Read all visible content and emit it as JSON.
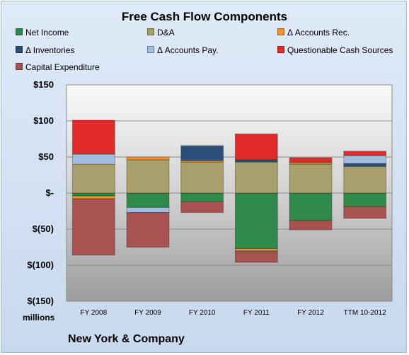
{
  "chart_data": {
    "type": "bar",
    "title": "Free Cash Flow Components",
    "categories": [
      "FY 2008",
      "FY 2009",
      "FY 2010",
      "FY 2011",
      "FY 2012",
      "TTM 10-2012"
    ],
    "y_tick_labels": [
      "$150",
      "$100",
      "$50",
      "$-",
      "$(50)",
      "$(100)",
      "$(150)"
    ],
    "y_tick_values": [
      150,
      100,
      50,
      0,
      -50,
      -100,
      -150
    ],
    "ylim": [
      -150,
      150
    ],
    "ylabel": "millions",
    "grid": true,
    "legend_position": "top",
    "stacked": true,
    "series": [
      {
        "name": "Net Income",
        "color": "#2f8a4b",
        "values": [
          -4,
          -20,
          -12,
          -77,
          -38,
          -18
        ]
      },
      {
        "name": "D&A",
        "color": "#a89f6a",
        "values": [
          40,
          46,
          43,
          43,
          40,
          37
        ]
      },
      {
        "name": "Δ Accounts Rec.",
        "color": "#f0912f",
        "values": [
          -4,
          4,
          2,
          -3,
          2,
          -1
        ]
      },
      {
        "name": "Δ Inventories",
        "color": "#2c4f7a",
        "values": [
          0,
          0,
          20,
          3,
          0,
          4
        ]
      },
      {
        "name": "Δ Accounts Pay.",
        "color": "#a3bde0",
        "values": [
          14,
          -7,
          1,
          -1,
          1,
          11
        ]
      },
      {
        "name": "Questionable Cash Sources",
        "color": "#e12a2a",
        "values": [
          47,
          0,
          0,
          36,
          6,
          6
        ]
      },
      {
        "name": "Capital Expenditure",
        "color": "#a85252",
        "values": [
          -78,
          -48,
          -15,
          -15,
          -13,
          -16
        ]
      }
    ]
  },
  "company": "New York & Company"
}
